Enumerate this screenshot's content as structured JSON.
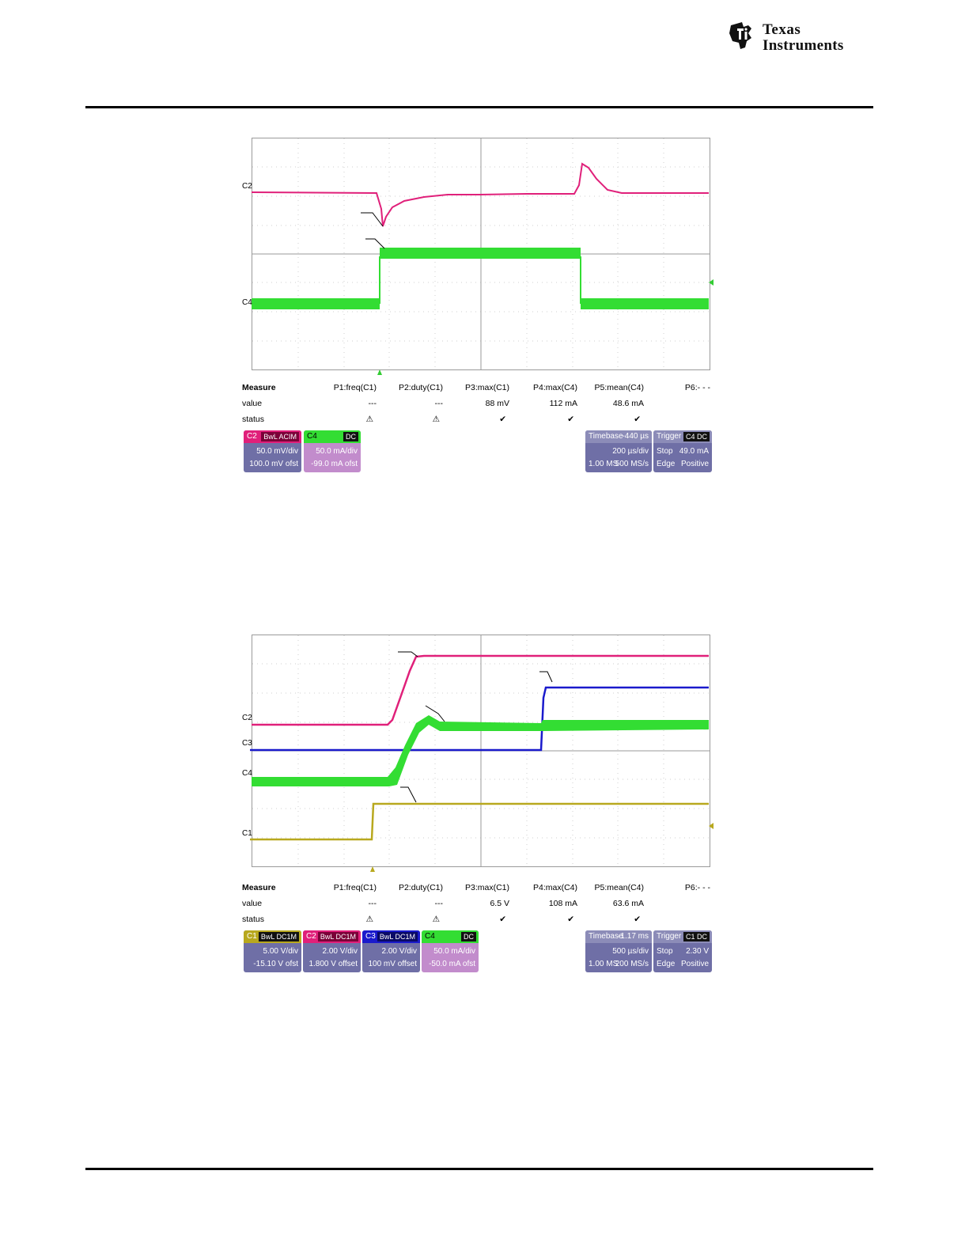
{
  "brand": {
    "line1": "Texas",
    "line2": "Instruments",
    "logo_icon": "ti-state-logo"
  },
  "figures": [
    {
      "channels": [
        {
          "label": "C2",
          "color": "#e0207a"
        },
        {
          "label": "C4",
          "color": "#33dd33"
        }
      ],
      "measure": {
        "head": "Measure",
        "row_labels": [
          "value",
          "status"
        ],
        "params": [
          "P1:freq(C1)",
          "P2:duty(C1)",
          "P3:max(C1)",
          "P4:max(C4)",
          "P5:mean(C4)",
          "P6:- - -"
        ],
        "values": [
          "---",
          "---",
          "88 mV",
          "112 mA",
          "48.6 mA",
          ""
        ],
        "status": [
          "warning",
          "warning",
          "check",
          "check",
          "check",
          ""
        ]
      },
      "channel_boxes": [
        {
          "name": "C2",
          "tag": "BwL ACIM",
          "color": "#e0207a",
          "scale": "50.0 mV/div",
          "offset": "100.0 mV ofst"
        },
        {
          "name": "C4",
          "tag": "DC",
          "color": "#33dd33",
          "scale": "50.0 mA/div",
          "offset": "-99.0 mA ofst"
        }
      ],
      "timebase": {
        "label": "Timebase",
        "delay": "-440 µs",
        "scale": "200 µs/div",
        "points": "1.00 MS",
        "rate": "500 MS/s"
      },
      "trigger": {
        "label": "Trigger",
        "tag": "C4 DC",
        "mode": "Stop",
        "level": "49.0 mA",
        "type": "Edge",
        "slope": "Positive"
      }
    },
    {
      "channels": [
        {
          "label": "C2",
          "color": "#e0207a"
        },
        {
          "label": "C3",
          "color": "#1a1acc"
        },
        {
          "label": "C4",
          "color": "#33dd33"
        },
        {
          "label": "C1",
          "color": "#b8a81e"
        }
      ],
      "measure": {
        "head": "Measure",
        "row_labels": [
          "value",
          "status"
        ],
        "params": [
          "P1:freq(C1)",
          "P2:duty(C1)",
          "P3:max(C1)",
          "P4:max(C4)",
          "P5:mean(C4)",
          "P6:- - -"
        ],
        "values": [
          "---",
          "---",
          "6.5 V",
          "108 mA",
          "63.6 mA",
          ""
        ],
        "status": [
          "warning",
          "warning",
          "check",
          "check",
          "check",
          ""
        ]
      },
      "channel_boxes": [
        {
          "name": "C1",
          "tag": "BwL DC1M",
          "color": "#b8a81e",
          "scale": "5.00 V/div",
          "offset": "-15.10 V ofst"
        },
        {
          "name": "C2",
          "tag": "BwL DC1M",
          "color": "#e0207a",
          "scale": "2.00 V/div",
          "offset": "1.800 V offset"
        },
        {
          "name": "C3",
          "tag": "BwL DC1M",
          "color": "#1a1acc",
          "scale": "2.00 V/div",
          "offset": "100 mV offset"
        },
        {
          "name": "C4",
          "tag": "DC",
          "color": "#33dd33",
          "scale": "50.0 mA/div",
          "offset": "-50.0 mA ofst"
        }
      ],
      "timebase": {
        "label": "Timebase",
        "delay": "-1.17 ms",
        "scale": "500 µs/div",
        "points": "1.00 MS",
        "rate": "200 MS/s"
      },
      "trigger": {
        "label": "Trigger",
        "tag": "C1 DC",
        "mode": "Stop",
        "level": "2.30 V",
        "type": "Edge",
        "slope": "Positive"
      }
    }
  ]
}
